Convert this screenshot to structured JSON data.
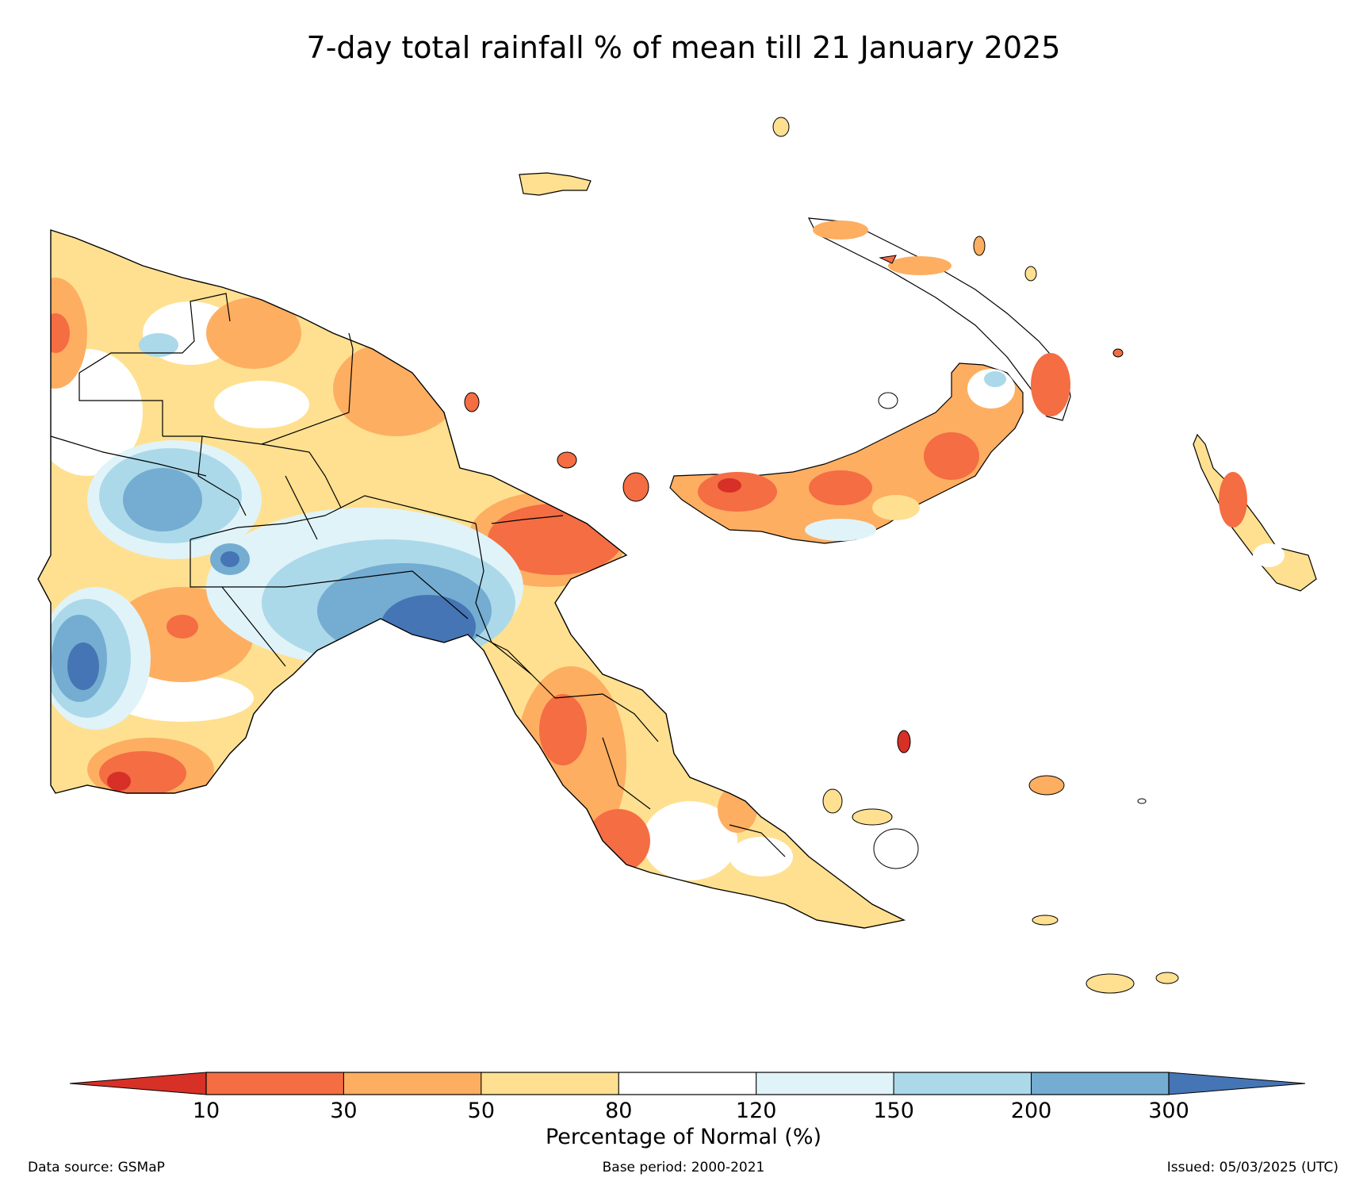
{
  "title": "7-day total rainfall % of mean till 21 January 2025",
  "colorbar": {
    "label": "Percentage of Normal (%)",
    "ticks": [
      "10",
      "30",
      "50",
      "80",
      "120",
      "150",
      "200",
      "300"
    ],
    "under_color": "#d73027",
    "over_color": "#4575b4",
    "bin_colors": [
      "#f46d43",
      "#fdae61",
      "#fee090",
      "#ffffff",
      "#e0f3f8",
      "#abd9e9",
      "#74add1"
    ]
  },
  "footer": {
    "source": "Data source: GSMaP",
    "base_period": "Base period: 2000-2021",
    "issued": "Issued: 05/03/2025 (UTC)"
  }
}
